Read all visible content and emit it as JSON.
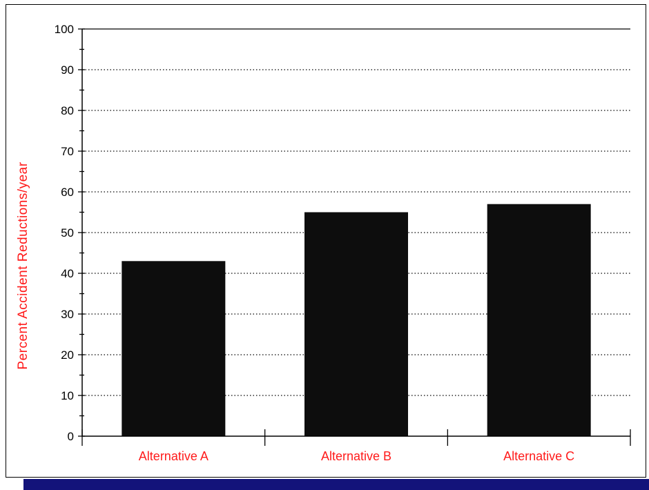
{
  "theme": {
    "accent": "#ff1a1a",
    "bar_color": "#0d0d0d",
    "frame_shadow": "#13137a"
  },
  "chart_data": {
    "type": "bar",
    "title": "",
    "xlabel": "",
    "ylabel": "Percent Accident Reductions/year",
    "categories": [
      "Alternative A",
      "Alternative B",
      "Alternative C"
    ],
    "series": [
      {
        "values": [
          43,
          55,
          57
        ]
      }
    ],
    "ylim": [
      0,
      100
    ],
    "yticks": [
      0,
      10,
      20,
      30,
      40,
      50,
      60,
      70,
      80,
      90,
      100
    ],
    "grid": "horizontal dotted",
    "legend": "none"
  }
}
